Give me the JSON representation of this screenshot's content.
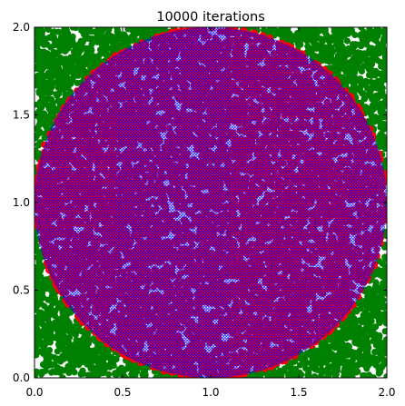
{
  "chart_data": {
    "type": "scatter",
    "title": "10000 iterations",
    "xlabel": "",
    "ylabel": "",
    "xlim": [
      0.0,
      2.0
    ],
    "ylim": [
      0.0,
      2.0
    ],
    "x_ticks": [
      "0.0",
      "0.5",
      "1.0",
      "1.5",
      "2.0"
    ],
    "y_ticks": [
      "0.0",
      "0.5",
      "1.0",
      "1.5",
      "2.0"
    ],
    "grid": false,
    "iterations": 10000,
    "circle": {
      "center": [
        1.0,
        1.0
      ],
      "radius": 1.0
    },
    "colors": {
      "outside": "#008000",
      "inside_dot": "#ff0000",
      "inside_mesh": "#0000ff"
    }
  }
}
